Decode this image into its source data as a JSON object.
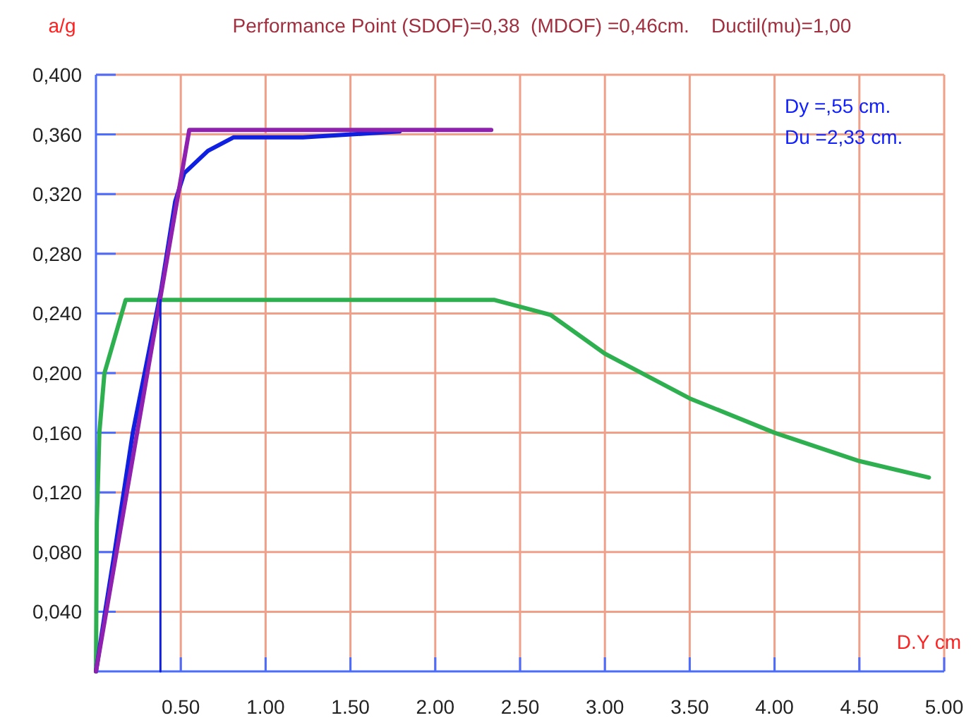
{
  "chart_data": {
    "type": "line",
    "title": "Performance Point (SDOF)=0,38  (MDOF) =0,46cm.    Ductil(mu)=1,00",
    "ylabel": "a/g",
    "xlabel": "D.Y cm",
    "annotations": [
      "Dy =,55 cm.",
      "Du =2,33 cm."
    ],
    "xlim": [
      0,
      5
    ],
    "ylim": [
      0,
      0.4
    ],
    "xticks": [
      {
        "value": 0.5,
        "label": "0.50"
      },
      {
        "value": 1,
        "label": "1.00"
      },
      {
        "value": 1.5,
        "label": "1.50"
      },
      {
        "value": 2,
        "label": "2.00"
      },
      {
        "value": 2.5,
        "label": "2.50"
      },
      {
        "value": 3,
        "label": "3.00"
      },
      {
        "value": 3.5,
        "label": "3.50"
      },
      {
        "value": 4,
        "label": "4.00"
      },
      {
        "value": 4.5,
        "label": "4.50"
      },
      {
        "value": 5,
        "label": "5.00"
      }
    ],
    "yticks": [
      {
        "value": 0.04,
        "label": "0,040"
      },
      {
        "value": 0.08,
        "label": "0,080"
      },
      {
        "value": 0.12,
        "label": "0,120"
      },
      {
        "value": 0.16,
        "label": "0,160"
      },
      {
        "value": 0.2,
        "label": "0,200"
      },
      {
        "value": 0.24,
        "label": "0,240"
      },
      {
        "value": 0.28,
        "label": "0,280"
      },
      {
        "value": 0.32,
        "label": "0,320"
      },
      {
        "value": 0.36,
        "label": "0,360"
      },
      {
        "value": 0.4,
        "label": "0,400"
      }
    ],
    "grid": true,
    "marker": "none",
    "line_style": "solid",
    "series": [
      {
        "color": "#2fb050",
        "x": [
          0,
          0.005,
          0.02,
          0.05,
          0.175,
          2.35,
          2.68,
          3,
          3.5,
          4,
          4.5,
          4.91
        ],
        "values": [
          0,
          0.1,
          0.16,
          0.2,
          0.249,
          0.249,
          0.239,
          0.213,
          0.183,
          0.16,
          0.141,
          0.13
        ]
      },
      {
        "color": "#1020e0",
        "x": [
          0,
          0.054,
          0.11,
          0.217,
          0.383,
          0.467,
          0.52,
          0.66,
          0.81,
          1.22,
          1.79
        ],
        "values": [
          0,
          0.04,
          0.08,
          0.16,
          0.255,
          0.315,
          0.334,
          0.349,
          0.358,
          0.358,
          0.362
        ]
      },
      {
        "color": "#9020b0",
        "x": [
          0,
          0.55,
          2.33
        ],
        "values": [
          0,
          0.363,
          0.363
        ]
      },
      {
        "color": "#1020e0",
        "x": [
          0.38,
          0.38
        ],
        "values": [
          0,
          0.249
        ]
      }
    ]
  }
}
